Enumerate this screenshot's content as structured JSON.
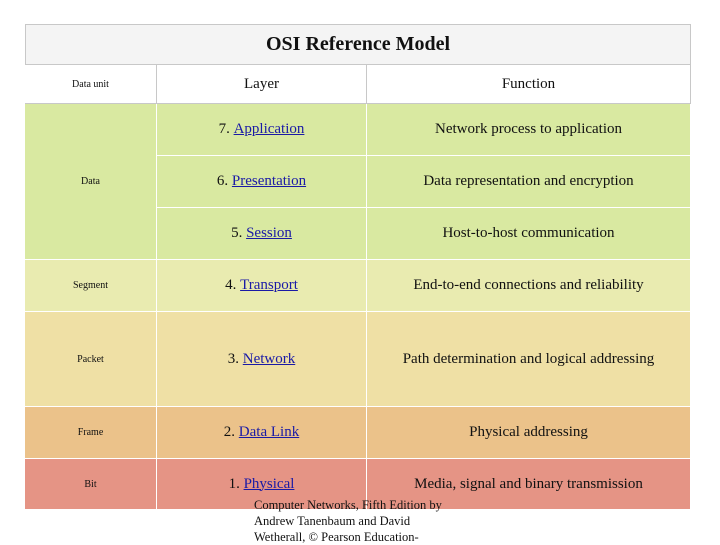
{
  "title": "OSI Reference Model",
  "headers": {
    "data_unit": "Data unit",
    "layer": "Layer",
    "function": "Function"
  },
  "rows": [
    {
      "num": "7.",
      "name": "Application",
      "function": "Network process to application"
    },
    {
      "num": "6.",
      "name": "Presentation",
      "function": "Data representation and encryption"
    },
    {
      "num": "5.",
      "name": "Session",
      "function": "Host-to-host communication"
    },
    {
      "num": "4.",
      "name": "Transport",
      "function": "End-to-end connections and reliability"
    },
    {
      "num": "3.",
      "name": "Network",
      "function": "Path determination and logical addressing"
    },
    {
      "num": "2.",
      "name": "Data Link",
      "function": "Physical addressing"
    },
    {
      "num": "1.",
      "name": "Physical",
      "function": "Media, signal and binary transmission"
    }
  ],
  "data_units": {
    "data": "Data",
    "segment": "Segment",
    "packet": "Packet",
    "frame": "Frame",
    "bit": "Bit"
  },
  "caption": {
    "line1": "Computer Networks, Fifth Edition by",
    "line2": "Andrew Tanenbaum and David",
    "line3": "Wetherall, © Pearson Education-"
  },
  "colors": {
    "green": "#d9e9a1",
    "light_yellow": "#e9ebb0",
    "yellow": "#efe0a5",
    "orange": "#ebc28a",
    "red": "#e59485",
    "link": "#1a1aa6"
  }
}
